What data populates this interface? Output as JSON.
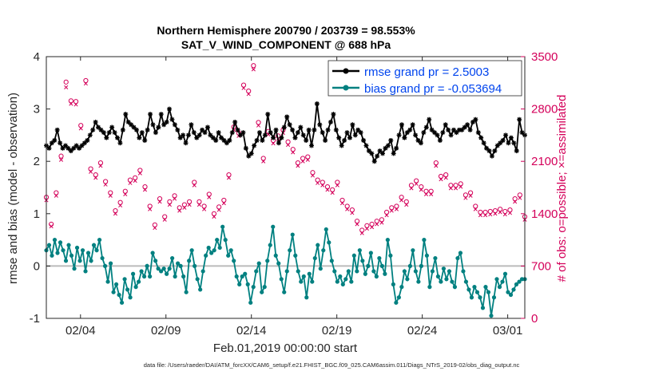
{
  "chart_data": {
    "type": "line",
    "title": "Northern Hemisphere 200790 / 203739 = 98.553%",
    "subtitle": "SAT_V_WIND_COMPONENT @ 688 hPa",
    "xlabel": "Feb.01,2019 00:00:00 start",
    "ylabel_left": "rmse and bias (model - observation)",
    "ylabel_right": "# of obs: o=possible; ×=assimilated",
    "footer": "data file: /Users/raeder/DAI/ATM_forcXX/CAM6_setup/f.e21.FHIST_BGC.f09_025.CAM6assim.011/Diags_NTrS_2019-02/obs_diag_output.nc",
    "xlim": [
      1,
      29
    ],
    "ylim_left": [
      -1,
      4
    ],
    "ylim_right": [
      0,
      3500
    ],
    "x_ticks": [
      3,
      8,
      13,
      18,
      23,
      28
    ],
    "x_tick_labels": [
      "02/04",
      "02/09",
      "02/14",
      "02/19",
      "02/24",
      "03/01"
    ],
    "y_left_ticks": [
      -1,
      0,
      1,
      2,
      3,
      4
    ],
    "y_right_ticks": [
      0,
      700,
      1400,
      2100,
      2800,
      3500
    ],
    "zero_line": 0,
    "legend_position": "top-right",
    "colors": {
      "rmse": "#000000",
      "bias": "#008080",
      "obs": "#d4005a",
      "legend_text": "#0044ee",
      "zero": "#bbbbbb"
    },
    "series": [
      {
        "name": "rmse grand pr = 2.5003",
        "values": [
          2.3,
          2.25,
          2.35,
          2.4,
          2.6,
          2.35,
          2.25,
          2.3,
          2.25,
          2.2,
          2.25,
          2.3,
          2.25,
          2.3,
          2.35,
          2.4,
          2.5,
          2.6,
          2.75,
          2.65,
          2.6,
          2.55,
          2.45,
          2.55,
          2.65,
          2.55,
          2.45,
          2.35,
          2.6,
          2.9,
          2.75,
          2.7,
          2.65,
          2.6,
          2.45,
          2.55,
          2.4,
          2.6,
          2.9,
          2.7,
          2.55,
          2.65,
          2.9,
          2.7,
          2.75,
          3.0,
          2.8,
          2.7,
          2.6,
          2.45,
          2.5,
          2.35,
          2.5,
          2.7,
          2.55,
          2.45,
          2.5,
          2.6,
          2.55,
          2.65,
          2.5,
          2.45,
          2.4,
          2.55,
          2.45,
          2.4,
          2.35,
          2.4,
          2.55,
          2.75,
          2.6,
          2.5,
          2.55,
          2.25,
          2.1,
          2.15,
          2.3,
          2.4,
          2.55,
          2.4,
          2.5,
          2.9,
          2.55,
          2.45,
          2.6,
          2.35,
          2.45,
          2.65,
          2.85,
          2.7,
          2.6,
          2.45,
          2.55,
          2.65,
          2.5,
          2.4,
          2.6,
          2.3,
          2.6,
          3.1,
          2.7,
          2.55,
          2.4,
          2.6,
          2.75,
          2.9,
          2.6,
          2.45,
          2.3,
          2.4,
          2.55,
          2.45,
          2.7,
          2.5,
          2.6,
          2.55,
          2.4,
          2.3,
          2.2,
          2.15,
          2.0,
          2.1,
          2.2,
          2.15,
          2.25,
          2.3,
          2.4,
          2.15,
          2.25,
          2.5,
          2.7,
          2.45,
          2.55,
          2.6,
          2.7,
          2.5,
          2.4,
          2.35,
          2.55,
          2.65,
          2.8,
          2.6,
          2.55,
          2.5,
          2.4,
          2.55,
          2.7,
          2.6,
          2.5,
          2.6,
          2.55,
          2.6,
          2.6,
          2.65,
          2.7,
          2.6,
          2.75,
          2.8,
          2.55,
          2.45,
          2.35,
          2.25,
          2.2,
          2.1,
          2.2,
          2.3,
          2.35,
          2.4,
          2.5,
          2.35,
          2.45,
          2.35,
          2.2,
          2.8,
          2.55,
          2.5
        ]
      },
      {
        "name": "bias grand pr = -0.053694",
        "values": [
          0.3,
          0.4,
          0.2,
          0.5,
          0.25,
          0.45,
          0.3,
          0.1,
          0.4,
          0.2,
          -0.05,
          0.35,
          0.1,
          0.3,
          -0.1,
          0.25,
          0.1,
          0.4,
          0.3,
          0.5,
          0.15,
          0.0,
          -0.3,
          0.05,
          -0.5,
          -0.35,
          -0.55,
          -0.7,
          -0.25,
          -0.45,
          -0.6,
          -0.15,
          -0.4,
          -0.3,
          -0.1,
          -0.2,
          0.0,
          -0.2,
          0.25,
          0.1,
          -0.05,
          -0.1,
          -0.05,
          -0.15,
          -0.05,
          0.15,
          -0.2,
          0.05,
          0.0,
          -0.2,
          -0.5,
          0.1,
          0.3,
          0.0,
          -0.25,
          -0.45,
          -0.1,
          0.2,
          0.35,
          0.25,
          0.3,
          0.5,
          0.35,
          0.75,
          0.5,
          0.2,
          0.3,
          0.1,
          -0.2,
          -0.35,
          -0.2,
          -0.15,
          -0.35,
          -0.7,
          -0.4,
          -0.1,
          0.05,
          -0.5,
          -0.4,
          0.1,
          0.4,
          0.75,
          0.2,
          0.05,
          -0.25,
          -0.5,
          -0.1,
          0.3,
          0.6,
          0.2,
          -0.1,
          -0.3,
          -0.2,
          -0.6,
          -0.15,
          -0.3,
          0.15,
          0.4,
          -0.05,
          0.3,
          0.7,
          0.45,
          0.1,
          -0.1,
          -0.3,
          -0.2,
          -0.35,
          -0.25,
          -0.1,
          -0.3,
          0.2,
          -0.1,
          0.3,
          0.1,
          -0.15,
          0.0,
          0.25,
          -0.1,
          -0.2,
          0.15,
          0.0,
          -0.15,
          0.5,
          0.2,
          -0.35,
          -0.7,
          -0.6,
          -0.4,
          -0.1,
          -0.25,
          0.0,
          0.3,
          -0.1,
          -0.3,
          0.0,
          0.5,
          0.2,
          -0.4,
          -0.1,
          0.15,
          -0.2,
          -0.3,
          -0.05,
          -0.25,
          -0.1,
          -0.3,
          -0.4,
          0.15,
          0.25,
          -0.1,
          -0.3,
          -0.45,
          -0.6,
          -0.4,
          -0.5,
          -0.6,
          -0.8,
          -0.4,
          -0.5,
          -0.95,
          -0.6,
          -0.25,
          -0.4,
          -0.3,
          -0.15,
          -0.5,
          -0.55,
          -0.45,
          -0.35,
          -0.3,
          -0.25,
          -0.25
        ]
      },
      {
        "name": "obs possible",
        "values": [
          1620,
          1260,
          1680,
          2170,
          3160,
          2910,
          2900,
          2580,
          3180,
          2000,
          1920,
          2080,
          1830,
          1680,
          1440,
          1550,
          1700,
          1850,
          1880,
          1980,
          1760,
          1500,
          1250,
          1600,
          1360,
          1560,
          1640,
          1480,
          1520,
          1560,
          1820,
          1560,
          1500,
          1660,
          1400,
          1490,
          1580,
          1920,
          2560,
          2480,
          3120,
          3040,
          3380,
          2620,
          2140,
          2500,
          2380,
          2440,
          2520,
          2360,
          2260,
          2080,
          2140,
          2160,
          1950,
          1850,
          1820,
          1760,
          1720,
          1820,
          1580,
          1500,
          1450,
          1300,
          1180,
          1240,
          1260,
          1300,
          1320,
          1420,
          1480,
          1500,
          1620,
          1560,
          1780,
          1840,
          1760,
          1700,
          1700,
          2080,
          1900,
          1920,
          1780,
          1780,
          1800,
          1650,
          1680,
          1500,
          1420,
          1420,
          1430,
          1440,
          1460,
          1430,
          1450,
          1600,
          1650,
          1360
        ]
      },
      {
        "name": "obs assimilated",
        "values": [
          1580,
          1230,
          1640,
          2120,
          3090,
          2870,
          2860,
          2540,
          3140,
          1960,
          1880,
          2040,
          1790,
          1640,
          1400,
          1510,
          1660,
          1810,
          1840,
          1940,
          1720,
          1460,
          1210,
          1560,
          1320,
          1520,
          1600,
          1440,
          1480,
          1520,
          1780,
          1520,
          1460,
          1620,
          1360,
          1450,
          1540,
          1880,
          2520,
          2440,
          3080,
          3000,
          3330,
          2580,
          2100,
          2460,
          2340,
          2400,
          2480,
          2320,
          2220,
          2040,
          2100,
          2120,
          1910,
          1810,
          1780,
          1720,
          1680,
          1780,
          1540,
          1460,
          1410,
          1260,
          1140,
          1200,
          1220,
          1260,
          1280,
          1380,
          1440,
          1460,
          1580,
          1520,
          1740,
          1800,
          1720,
          1660,
          1660,
          2040,
          1860,
          1880,
          1740,
          1740,
          1760,
          1610,
          1640,
          1460,
          1380,
          1380,
          1390,
          1400,
          1420,
          1390,
          1410,
          1560,
          1610,
          1320
        ]
      }
    ]
  }
}
